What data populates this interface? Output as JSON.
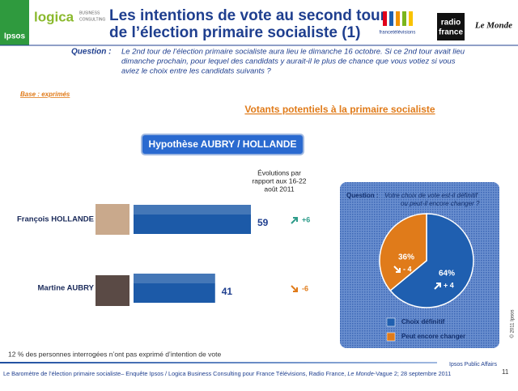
{
  "header": {
    "title_lines": [
      "Les intentions de vote au second tour",
      "de l’élection primaire socialiste (1)"
    ],
    "logos": [
      "Ipsos",
      "logica",
      "BUSINESS",
      "CONSULTING",
      "francetélévisions",
      "radio",
      "france",
      "Le Monde"
    ]
  },
  "question": {
    "label": "Question :",
    "lines": [
      "Le 2nd tour de l’élection primaire socialiste aura lieu le dimanche 16 octobre. Si ce 2nd tour avait lieu",
      "dimanche prochain, pour lequel des candidats y aurait-il le plus de chance que vous votiez si vous",
      "aviez le choix entre les candidats suivants ?"
    ]
  },
  "base": "Base : exprimés",
  "subtitle": "Votants potentiels à la primaire socialiste",
  "hypothesis": "Hypothèse AUBRY / HOLLANDE",
  "chart_data": [
    {
      "type": "bar",
      "categories": [
        "François HOLLANDE",
        "Martine AUBRY"
      ],
      "values": [
        59,
        41
      ],
      "color": "#1c5aa8",
      "change_title": [
        "Évolutions par",
        "rapport aux 16-22",
        "août 2011"
      ],
      "changes": [
        6,
        -6
      ],
      "change_labels": [
        "+6",
        "-6"
      ],
      "change_colors": [
        "#2e9c8a",
        "#e07b1a"
      ]
    },
    {
      "type": "pie",
      "question_label": "Question :",
      "question_lines": [
        "Votre choix de vote est-il définitif",
        "ou peut-il encore changer ?"
      ],
      "categories": [
        "Choix définitif",
        "Peut encore changer"
      ],
      "values": [
        64,
        36
      ],
      "value_labels": [
        "64%",
        "36%"
      ],
      "colors": [
        "#1f5fb0",
        "#e07b1a"
      ],
      "changes": [
        4,
        -4
      ],
      "change_labels": [
        "+ 4",
        "- 4"
      ]
    }
  ],
  "note": "12 % des personnes interrogées n’ont pas exprimé d’intention de vote",
  "signature": "Ipsos Public Affairs",
  "footer": {
    "before": "Le Baromètre de l’élection primaire socialiste– Enquête Ipsos / Logica Business Consulting pour France Télévisions, Radio France, ",
    "italic": "Le Monde",
    "after": "-Vague 2; 28 septembre 2011"
  },
  "page_number": "11",
  "copyright": "© 2011 Ipsos"
}
